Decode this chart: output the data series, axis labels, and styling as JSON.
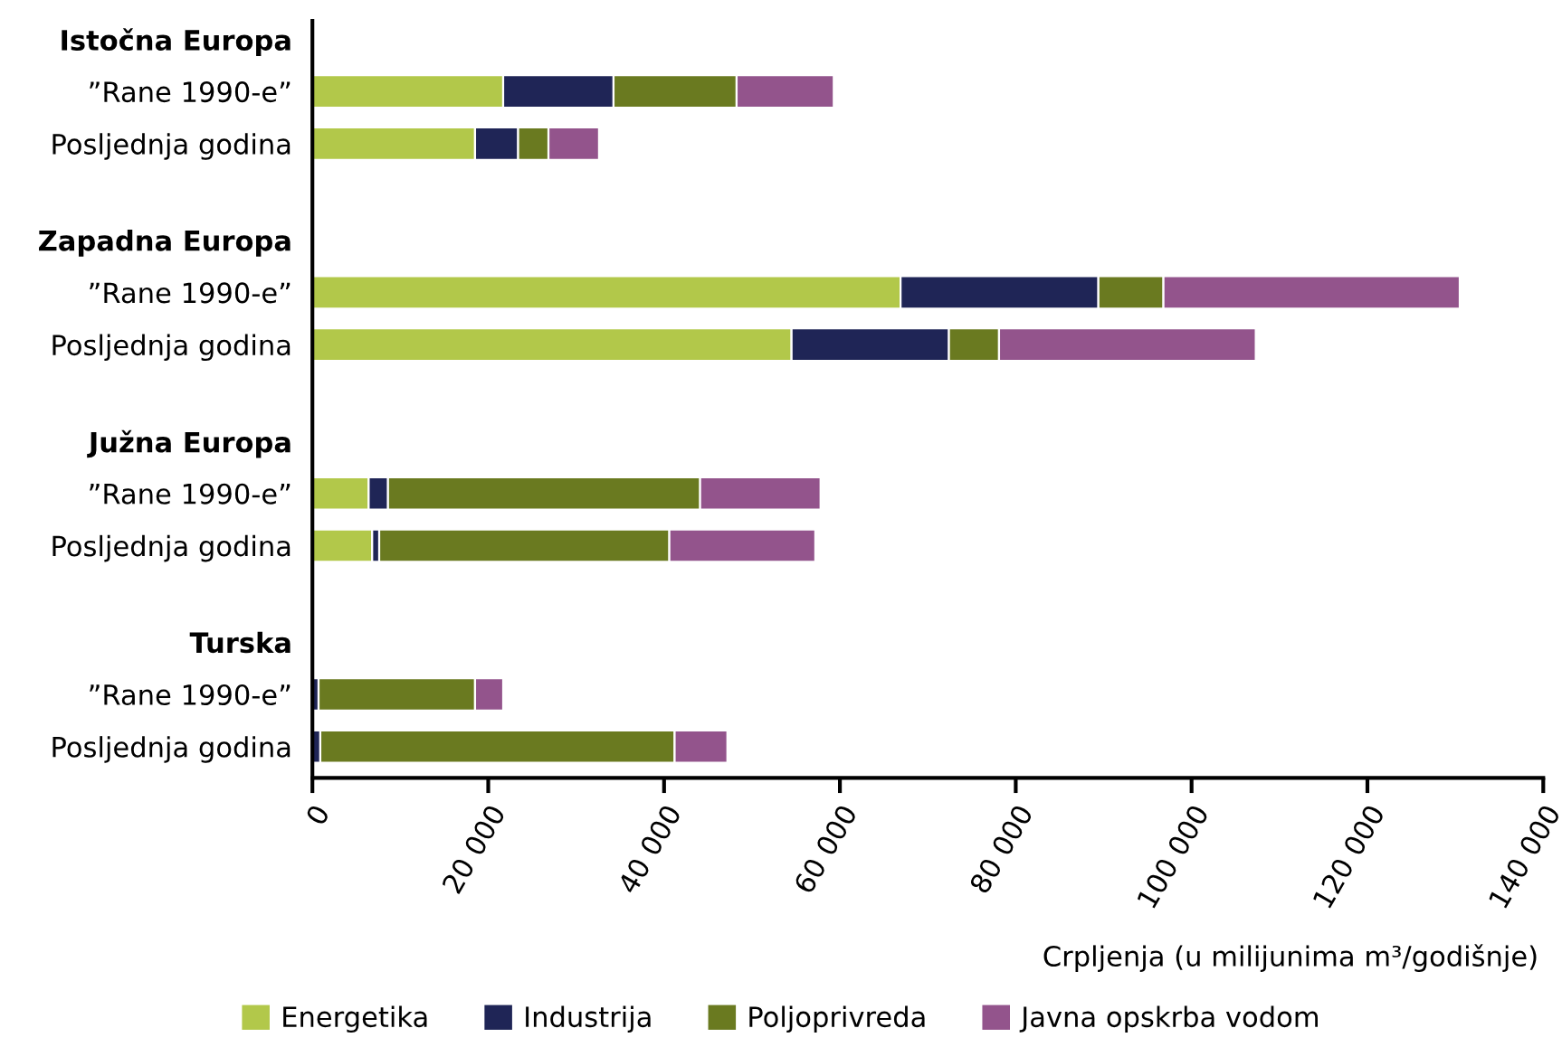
{
  "chart_data": {
    "type": "bar",
    "orientation": "horizontal",
    "stacked": true,
    "xlabel": "Crpljenja (u milijunima m³/godišnje)",
    "categories": [
      "Istočna Europa",
      "”Rane 1990-e”",
      "Posljednja godina",
      "Zapadna Europa",
      "”Rane 1990-e”",
      "Posljednja godina",
      "Južna Europa",
      "”Rane 1990-e”",
      "Posljednja godina",
      "Turska",
      "”Rane 1990-e”",
      "Posljednja godina"
    ],
    "series": [
      {
        "name": "Energetika",
        "color": "#b2c84a",
        "values": [
          null,
          21700,
          18500,
          null,
          66900,
          54500,
          null,
          6400,
          6800,
          null,
          0,
          0
        ]
      },
      {
        "name": "Industrija",
        "color": "#1f2556",
        "values": [
          null,
          12550,
          4900,
          null,
          22500,
          17900,
          null,
          2200,
          800,
          null,
          700,
          900
        ]
      },
      {
        "name": "Poljoprivreda",
        "color": "#6a7a20",
        "values": [
          null,
          14000,
          3450,
          null,
          7400,
          5700,
          null,
          35500,
          33000,
          null,
          17800,
          40300
        ]
      },
      {
        "name": "Javna opskrba vodom",
        "color": "#93548c",
        "values": [
          null,
          11050,
          5750,
          null,
          33700,
          29200,
          null,
          13700,
          16600,
          null,
          3200,
          6000
        ]
      }
    ],
    "xlim": [
      0,
      140000
    ],
    "xticks": [
      0,
      {
        "value": 20000,
        "label": "20 000"
      },
      {
        "value": 40000,
        "label": "40 000"
      },
      {
        "value": 60000,
        "label": "60 000"
      },
      {
        "value": 80000,
        "label": "80 000"
      },
      {
        "value": 100000,
        "label": "100 000"
      },
      {
        "value": 120000,
        "label": "120 000"
      },
      {
        "value": 140000,
        "label": "140 000"
      }
    ],
    "grid": false,
    "legend": "bottom"
  }
}
